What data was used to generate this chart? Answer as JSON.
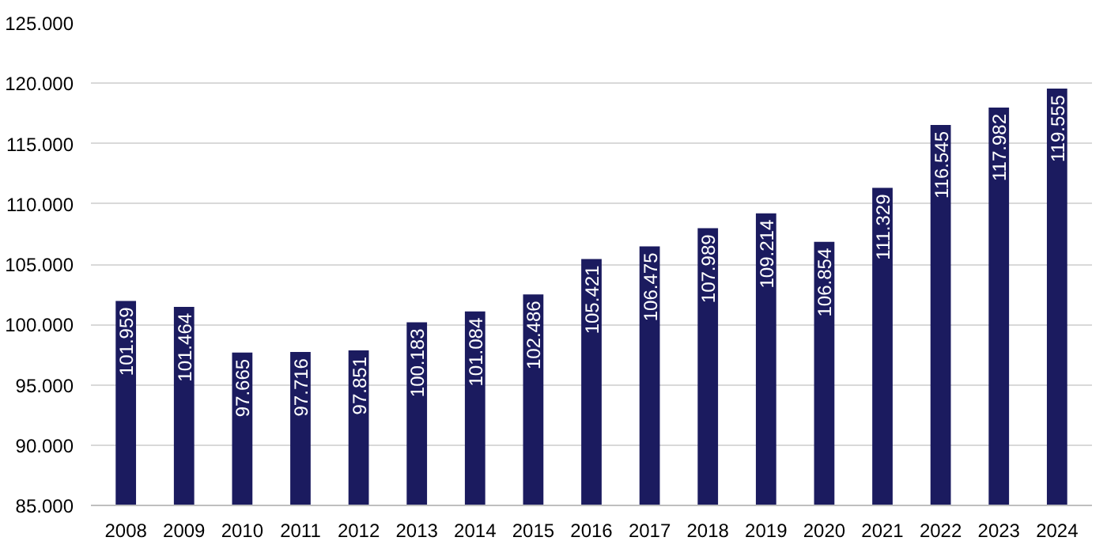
{
  "chart_data": {
    "type": "bar",
    "categories": [
      "2008",
      "2009",
      "2010",
      "2011",
      "2012",
      "2013",
      "2014",
      "2015",
      "2016",
      "2017",
      "2018",
      "2019",
      "2020",
      "2021",
      "2022",
      "2023",
      "2024"
    ],
    "values": [
      101959,
      101464,
      97665,
      97716,
      97851,
      100183,
      101084,
      102486,
      105421,
      106475,
      107989,
      109214,
      106854,
      111329,
      116545,
      117982,
      119555
    ],
    "value_labels": [
      "101.959",
      "101.464",
      "97.665",
      "97.716",
      "97.851",
      "100.183",
      "101.084",
      "102.486",
      "105.421",
      "106.475",
      "107.989",
      "109.214",
      "106.854",
      "111.329",
      "116.545",
      "117.982",
      "119.555"
    ],
    "color": "#1b1b5f",
    "ylim": [
      85000,
      125000
    ],
    "yticks": [
      {
        "value": 85000,
        "label": "85.000"
      },
      {
        "value": 90000,
        "label": "90.000"
      },
      {
        "value": 95000,
        "label": "95.000"
      },
      {
        "value": 100000,
        "label": "100.000"
      },
      {
        "value": 105000,
        "label": "105.000"
      },
      {
        "value": 110000,
        "label": "110.000"
      },
      {
        "value": 115000,
        "label": "115.000"
      },
      {
        "value": 120000,
        "label": "120.000"
      },
      {
        "value": 125000,
        "label": "125.000"
      }
    ],
    "grid": "y"
  }
}
